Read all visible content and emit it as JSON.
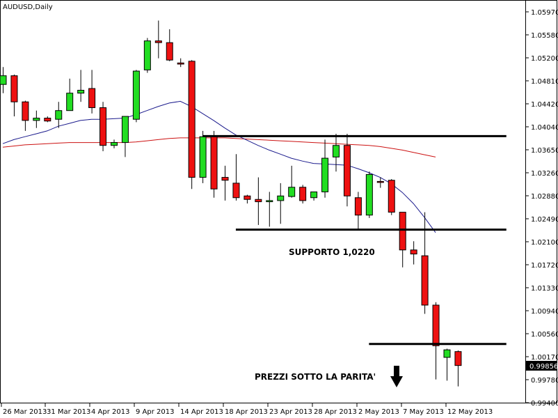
{
  "chart_data": {
    "type": "candlestick",
    "title": "AUDUSD,Daily",
    "ylim": [
      0.9922,
      1.0613
    ],
    "y_ticks": [
      "1.05970",
      "1.05580",
      "1.05200",
      "1.04810",
      "1.04420",
      "1.04040",
      "1.03650",
      "1.03260",
      "1.02880",
      "1.02490",
      "1.02100",
      "1.01720",
      "1.01330",
      "1.00940",
      "1.00560",
      "1.00170",
      "0.99780",
      "0.99400"
    ],
    "x_labels": [
      "26 Mar 2013",
      "31 Mar 2013",
      "4 Apr 2013",
      "9 Apr 2013",
      "14 Apr 2013",
      "18 Apr 2013",
      "23 Apr 2013",
      "28 Apr 2013",
      "2 May 2013",
      "7 May 2013",
      "12 May 2013"
    ],
    "last_price_label": "0.99856",
    "last_price": 0.99856,
    "candles": [
      {
        "o": 1.047,
        "h": 1.05,
        "l": 1.0455,
        "c": 1.0485
      },
      {
        "o": 1.0485,
        "h": 1.0487,
        "l": 1.0415,
        "c": 1.044
      },
      {
        "o": 1.044,
        "h": 1.0442,
        "l": 1.039,
        "c": 1.0408
      },
      {
        "o": 1.0408,
        "h": 1.0425,
        "l": 1.0395,
        "c": 1.0412
      },
      {
        "o": 1.0412,
        "h": 1.0415,
        "l": 1.0405,
        "c": 1.0407
      },
      {
        "o": 1.041,
        "h": 1.044,
        "l": 1.0395,
        "c": 1.0425
      },
      {
        "o": 1.0425,
        "h": 1.048,
        "l": 1.0425,
        "c": 1.0455
      },
      {
        "o": 1.0455,
        "h": 1.0495,
        "l": 1.044,
        "c": 1.046
      },
      {
        "o": 1.0463,
        "h": 1.0495,
        "l": 1.042,
        "c": 1.043
      },
      {
        "o": 1.043,
        "h": 1.044,
        "l": 1.0355,
        "c": 1.0365
      },
      {
        "o": 1.0365,
        "h": 1.0375,
        "l": 1.036,
        "c": 1.037
      },
      {
        "o": 1.037,
        "h": 1.0415,
        "l": 1.0345,
        "c": 1.0415
      },
      {
        "o": 1.041,
        "h": 1.0495,
        "l": 1.0405,
        "c": 1.0493
      },
      {
        "o": 1.0495,
        "h": 1.055,
        "l": 1.049,
        "c": 1.0545
      },
      {
        "o": 1.0545,
        "h": 1.058,
        "l": 1.0515,
        "c": 1.0542
      },
      {
        "o": 1.0542,
        "h": 1.0565,
        "l": 1.051,
        "c": 1.0512
      },
      {
        "o": 1.0507,
        "h": 1.0515,
        "l": 1.05,
        "c": 1.0505
      },
      {
        "o": 1.051,
        "h": 1.0512,
        "l": 1.029,
        "c": 1.031
      },
      {
        "o": 1.031,
        "h": 1.039,
        "l": 1.03,
        "c": 1.038
      },
      {
        "o": 1.038,
        "h": 1.039,
        "l": 1.0275,
        "c": 1.029
      },
      {
        "o": 1.031,
        "h": 1.033,
        "l": 1.027,
        "c": 1.0305
      },
      {
        "o": 1.03,
        "h": 1.035,
        "l": 1.027,
        "c": 1.0275
      },
      {
        "o": 1.0278,
        "h": 1.028,
        "l": 1.0265,
        "c": 1.0272
      },
      {
        "o": 1.0272,
        "h": 1.031,
        "l": 1.0228,
        "c": 1.0268
      },
      {
        "o": 1.0268,
        "h": 1.0285,
        "l": 1.0225,
        "c": 1.027
      },
      {
        "o": 1.027,
        "h": 1.03,
        "l": 1.023,
        "c": 1.0278
      },
      {
        "o": 1.0277,
        "h": 1.033,
        "l": 1.0275,
        "c": 1.0293
      },
      {
        "o": 1.0293,
        "h": 1.0297,
        "l": 1.0265,
        "c": 1.027
      },
      {
        "o": 1.0275,
        "h": 1.0285,
        "l": 1.027,
        "c": 1.0285
      },
      {
        "o": 1.0285,
        "h": 1.0375,
        "l": 1.0275,
        "c": 1.0343
      },
      {
        "o": 1.0345,
        "h": 1.0385,
        "l": 1.032,
        "c": 1.0365
      },
      {
        "o": 1.0365,
        "h": 1.0385,
        "l": 1.026,
        "c": 1.0278
      },
      {
        "o": 1.0275,
        "h": 1.0285,
        "l": 1.022,
        "c": 1.0245
      },
      {
        "o": 1.0245,
        "h": 1.032,
        "l": 1.024,
        "c": 1.0315
      },
      {
        "o": 1.0303,
        "h": 1.031,
        "l": 1.0292,
        "c": 1.0302
      },
      {
        "o": 1.0305,
        "h": 1.0307,
        "l": 1.0245,
        "c": 1.025
      },
      {
        "o": 1.025,
        "h": 1.025,
        "l": 1.0155,
        "c": 1.0185
      },
      {
        "o": 1.0185,
        "h": 1.02,
        "l": 1.016,
        "c": 1.0178
      },
      {
        "o": 1.0175,
        "h": 1.025,
        "l": 1.0075,
        "c": 1.009
      },
      {
        "o": 1.009,
        "h": 1.0095,
        "l": 0.9962,
        "c": 1.002
      },
      {
        "o": 1.0,
        "h": 1.0015,
        "l": 0.996,
        "c": 1.0013
      },
      {
        "o": 1.001,
        "h": 1.0012,
        "l": 0.995,
        "c": 0.9986
      }
    ],
    "ma_fast": [
      1.0368,
      1.0375,
      1.038,
      1.0385,
      1.039,
      1.0398,
      1.0403,
      1.0408,
      1.041,
      1.041,
      1.0411,
      1.0412,
      1.0418,
      1.0425,
      1.0432,
      1.0438,
      1.0441,
      1.0432,
      1.042,
      1.0408,
      1.0395,
      1.0383,
      1.0374,
      1.0365,
      1.0357,
      1.035,
      1.0343,
      1.0338,
      1.0334,
      1.0333,
      1.0332,
      1.0331,
      1.0325,
      1.0318,
      1.031,
      1.0299,
      1.0284,
      1.0265,
      1.0241,
      1.0215
    ],
    "ma_fast_start": 0,
    "ma_slow": [
      1.0362,
      1.0364,
      1.0366,
      1.0367,
      1.0368,
      1.0369,
      1.037,
      1.037,
      1.037,
      1.037,
      1.037,
      1.037,
      1.0371,
      1.0373,
      1.0375,
      1.0377,
      1.0378,
      1.0378,
      1.0378,
      1.0378,
      1.0378,
      1.0377,
      1.0376,
      1.0375,
      1.0374,
      1.0373,
      1.0372,
      1.0371,
      1.037,
      1.0369,
      1.0368,
      1.0367,
      1.0366,
      1.0365,
      1.0363,
      1.036,
      1.0357,
      1.0353,
      1.0349,
      1.0345
    ],
    "ma_slow_start": 0,
    "lines": [
      {
        "name": "resistance-line",
        "y": 1.0381,
        "from": 18,
        "to": 45
      },
      {
        "name": "support-line",
        "y": 1.022,
        "from": 21,
        "to": 45
      },
      {
        "name": "parity-line",
        "y": 1.0023,
        "from": 33,
        "to": 45
      }
    ],
    "annotations": [
      {
        "name": "support-annotation",
        "text": "SUPPORTO 1,0220"
      },
      {
        "name": "parity-annotation",
        "text": "PREZZI SOTTO LA PARITA'"
      }
    ],
    "colors": {
      "bull": "#22dd22",
      "bear": "#ee1111",
      "ma_fast": "#1a1a8c",
      "ma_slow": "#cc1111",
      "price_tag_bg": "#000000",
      "price_tag_fg": "#ffffff"
    }
  }
}
